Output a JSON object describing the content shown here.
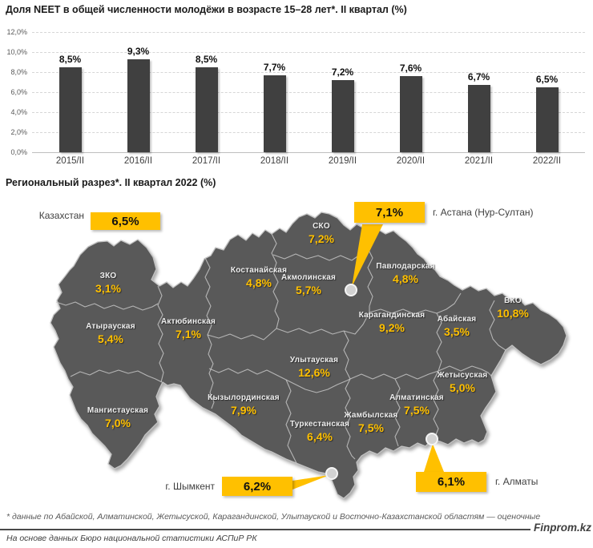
{
  "header": {
    "title": "Доля NEET в общей численности молодёжи в возрасте 15–28 лет*. II квартал (%)"
  },
  "chart_data": {
    "type": "bar",
    "title": "Доля NEET в общей численности молодёжи в возрасте 15–28 лет*. II квартал (%)",
    "categories": [
      "2015/II",
      "2016/II",
      "2017/II",
      "2018/II",
      "2019/II",
      "2020/II",
      "2021/II",
      "2022/II"
    ],
    "values": [
      8.5,
      9.3,
      8.5,
      7.7,
      7.2,
      7.6,
      6.7,
      6.5
    ],
    "value_labels": [
      "8,5%",
      "9,3%",
      "8,5%",
      "7,7%",
      "7,2%",
      "7,6%",
      "6,7%",
      "6,5%"
    ],
    "ylim": [
      0,
      12
    ],
    "ytick_labels": [
      "0,0%",
      "2,0%",
      "4,0%",
      "6,0%",
      "8,0%",
      "10,0%",
      "12,0%"
    ],
    "grid": true,
    "legend": "none",
    "bar_color": "#404040"
  },
  "map_section": {
    "title": "Региональный разрез*. II квартал 2022 (%)",
    "national": {
      "label": "Казахстан",
      "value": "6,5%"
    },
    "cities": [
      {
        "label": "г. Астана (Нур-Султан)",
        "value": "7,1%"
      },
      {
        "label": "г. Шымкент",
        "value": "6,2%"
      },
      {
        "label": "г. Алматы",
        "value": "6,1%"
      }
    ],
    "regions": [
      {
        "name": "СКО",
        "value": "7,2%"
      },
      {
        "name": "Костанайская",
        "value": "4,8%"
      },
      {
        "name": "Акмолинская",
        "value": "5,7%"
      },
      {
        "name": "Павлодарская",
        "value": "4,8%"
      },
      {
        "name": "ЗКО",
        "value": "3,1%"
      },
      {
        "name": "Атырауская",
        "value": "5,4%"
      },
      {
        "name": "Актюбинская",
        "value": "7,1%"
      },
      {
        "name": "Карагандинская",
        "value": "9,2%"
      },
      {
        "name": "Абайская",
        "value": "3,5%"
      },
      {
        "name": "ВКО",
        "value": "10,8%"
      },
      {
        "name": "Улытауская",
        "value": "12,6%"
      },
      {
        "name": "Жетысуская",
        "value": "5,0%"
      },
      {
        "name": "Кызылординская",
        "value": "7,9%"
      },
      {
        "name": "Алматинская",
        "value": "7,5%"
      },
      {
        "name": "Жамбылская",
        "value": "7,5%"
      },
      {
        "name": "Туркестанская",
        "value": "6,4%"
      },
      {
        "name": "Мангистауская",
        "value": "7,0%"
      }
    ],
    "colors": {
      "accent": "#FFC000",
      "map_fill": "#595959",
      "map_border": "#c6c6c6"
    }
  },
  "footer": {
    "note": "* данные по Абайской, Алматинской, Жетысуской, Карагандинской, Улытауской и Восточно-Казахстанской областям — оценочные",
    "brand": "Finprom.kz",
    "source": "На основе данных Бюро национальной статистики АСПиР РК"
  }
}
